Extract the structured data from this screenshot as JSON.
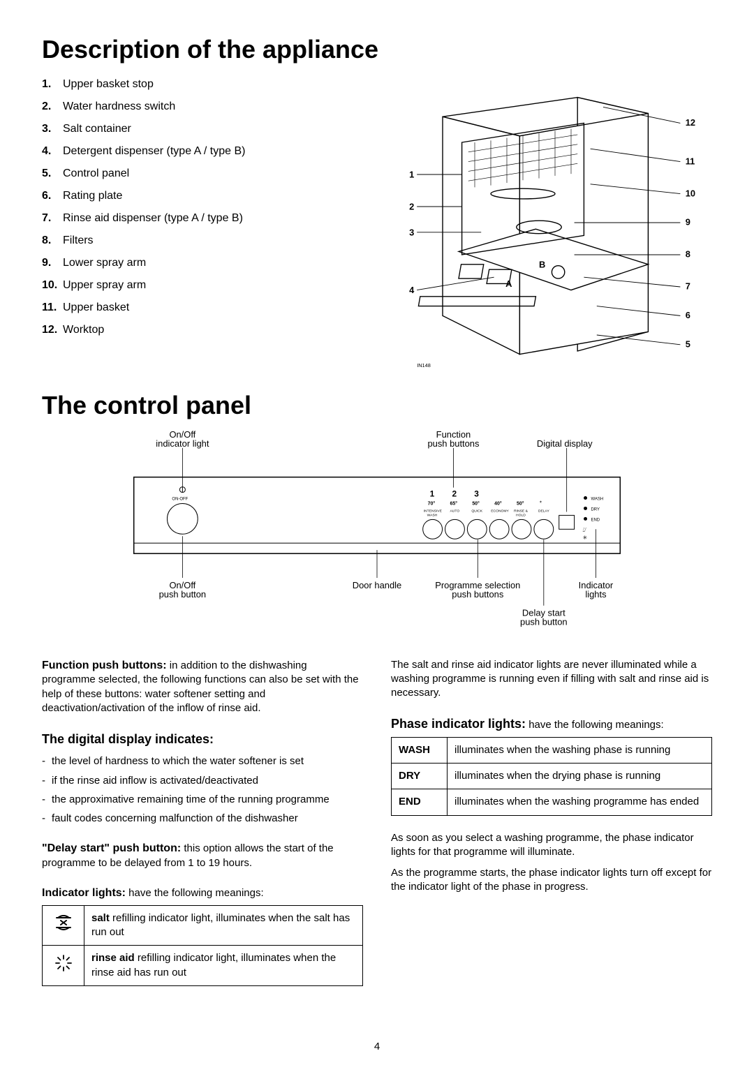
{
  "page_number": "4",
  "heading1": "Description of the appliance",
  "heading2": "The control panel",
  "parts": [
    {
      "n": "1.",
      "t": "Upper basket stop"
    },
    {
      "n": "2.",
      "t": "Water hardness switch"
    },
    {
      "n": "3.",
      "t": "Salt container"
    },
    {
      "n": "4.",
      "t": "Detergent dispenser (type A / type B)"
    },
    {
      "n": "5.",
      "t": "Control panel"
    },
    {
      "n": "6.",
      "t": "Rating plate"
    },
    {
      "n": "7.",
      "t": "Rinse aid dispenser (type A / type B)"
    },
    {
      "n": "8.",
      "t": "Filters"
    },
    {
      "n": "9.",
      "t": "Lower spray arm"
    },
    {
      "n": "10.",
      "t": "Upper spray arm"
    },
    {
      "n": "11.",
      "t": "Upper basket"
    },
    {
      "n": "12.",
      "t": "Worktop"
    }
  ],
  "diagram_labels": {
    "l1": "1",
    "l2": "2",
    "l3": "3",
    "l4": "4",
    "l5": "5",
    "l6": "6",
    "l7": "7",
    "l8": "8",
    "l9": "9",
    "l10": "10",
    "l11": "11",
    "l12": "12",
    "a": "A",
    "b": "B",
    "code": "IN148"
  },
  "panel": {
    "onoff_light": "On/Off\nindicator light",
    "onoff_btn": "On/Off\npush button",
    "door_handle": "Door handle",
    "function_btns": "Function\npush buttons",
    "digital_display": "Digital display",
    "prog_sel": "Programme selection\npush buttons",
    "delay_start": "Delay start\npush button",
    "indicator_lights": "Indicator\nlights",
    "nums": {
      "n1": "1",
      "n2": "2",
      "n3": "3"
    },
    "temps": {
      "t1": "70°",
      "t2": "65°",
      "t3": "50°",
      "t4": "40°",
      "t5": "50°"
    },
    "progs": {
      "p1": "INTENSIVE\nWASH",
      "p2": "AUTO",
      "p3": "QUICK",
      "p4": "ECONOMY",
      "p5": "RINSE &\nHOLD",
      "p6": "DELAY"
    },
    "leds": {
      "l1": "WASH",
      "l2": "DRY",
      "l3": "END"
    },
    "onoff_txt": "ON-OFF"
  },
  "leftcol": {
    "fpb_title": "Function push buttons:",
    "fpb_text": " in addition to the dishwashing programme selected, the following functions can also be set with the help of these buttons: water softener setting and deactivation/activation of the inflow of rinse aid.",
    "dd_title": "The digital display indicates:",
    "dd_items": [
      "the level of hardness to which the water softener is set",
      "if the rinse aid inflow is activated/deactivated",
      "the approximative remaining time of the running programme",
      "fault codes concerning malfunction of the dishwasher"
    ],
    "ds_title": "\"Delay start\" push button:",
    "ds_text": " this option allows the start of the programme to be delayed from 1 to 19 hours.",
    "il_title": "Indicator lights:",
    "il_text": " have the following meanings:",
    "il_rows": [
      {
        "icon": "salt",
        "bold": "salt",
        "text": " refilling indicator light, illuminates when the salt has run out"
      },
      {
        "icon": "rinse",
        "bold": "rinse aid",
        "text": " refilling indicator light, illuminates when the rinse aid has run out"
      }
    ]
  },
  "rightcol": {
    "top_para": "The salt and rinse aid indicator lights are never illuminated while a washing programme is running even if filling with salt and rinse aid is necessary.",
    "pil_title": "Phase indicator lights:",
    "pil_text": " have the following meanings:",
    "pil_rows": [
      {
        "p": "WASH",
        "t": "illuminates when the washing phase is running"
      },
      {
        "p": "DRY",
        "t": "illuminates when the drying phase is running"
      },
      {
        "p": "END",
        "t": "illuminates when the washing programme has ended"
      }
    ],
    "bot_para1": "As soon as you select a washing programme, the phase indicator lights for that programme will illuminate.",
    "bot_para2": "As the programme starts, the phase indicator lights turn off except for the indicator light of the phase in progress."
  }
}
